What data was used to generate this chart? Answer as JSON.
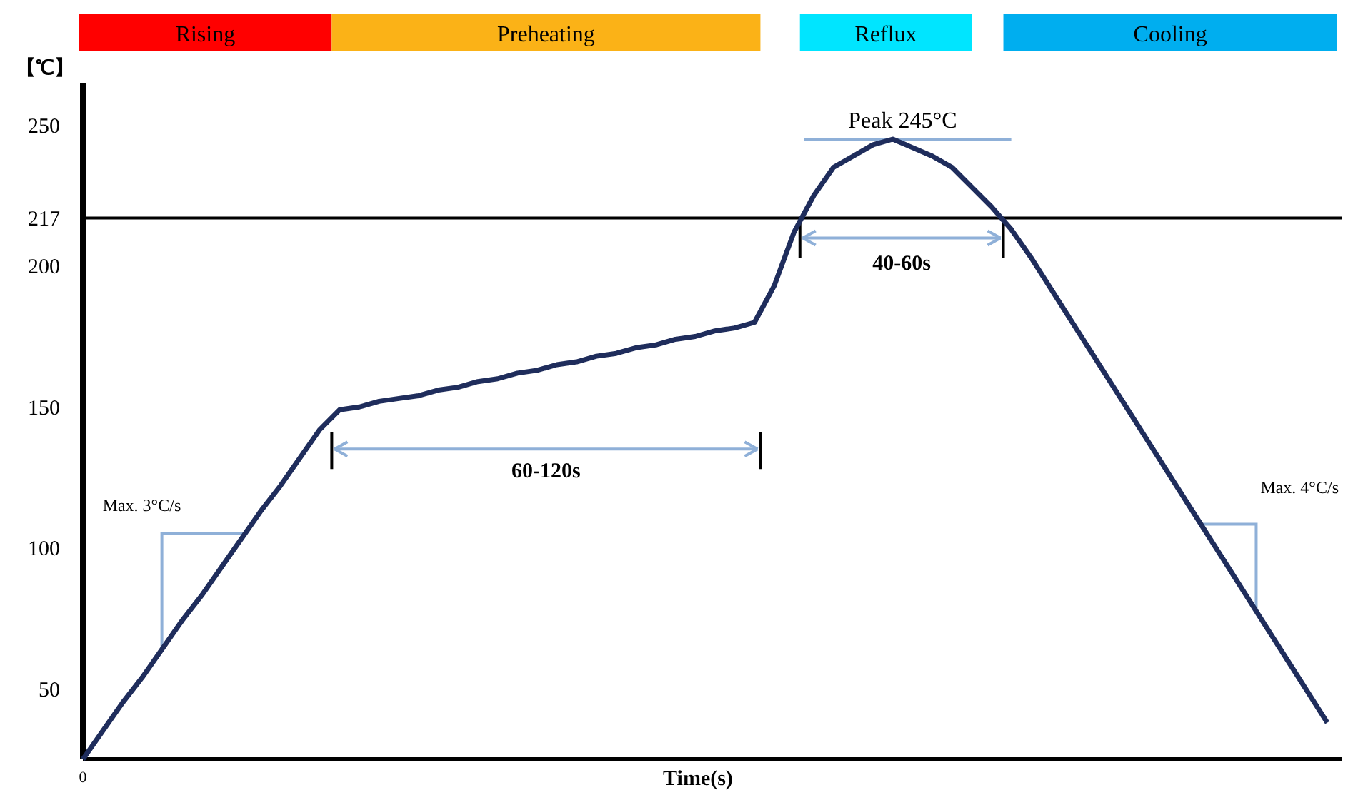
{
  "chart_data": {
    "type": "line",
    "xlabel": "Time(s)",
    "ylabel": "【℃】",
    "categories": [
      "0",
      null,
      null,
      null,
      null,
      null,
      null,
      null,
      null,
      null,
      null,
      null,
      null,
      null,
      null,
      null,
      null,
      null,
      null,
      null,
      null,
      null,
      null,
      null,
      null,
      null,
      null,
      null,
      null,
      null,
      null,
      null,
      null,
      null,
      null,
      null,
      null,
      null,
      null,
      null,
      null,
      null,
      null,
      null,
      null,
      null,
      null,
      null,
      null,
      null,
      null,
      null,
      null,
      null,
      null,
      null,
      null,
      null,
      null,
      null,
      null,
      null,
      null,
      null
    ],
    "series": [
      {
        "color": "#1f2d5c",
        "values": [
          25,
          35,
          45,
          54,
          64,
          74,
          83,
          93,
          103,
          113,
          122,
          132,
          142,
          149,
          150,
          152,
          153,
          154,
          156,
          157,
          159,
          160,
          162,
          163,
          165,
          166,
          168,
          169,
          171,
          172,
          174,
          175,
          177,
          178,
          180,
          193,
          212,
          225,
          235,
          239,
          243,
          245,
          242,
          239,
          235,
          228,
          221,
          213,
          203,
          192,
          181,
          170,
          159,
          148,
          137,
          126,
          115,
          104,
          93,
          82,
          71,
          60,
          49,
          38
        ]
      }
    ],
    "ylim": [
      25,
      265
    ],
    "yticks": [
      50,
      100,
      150,
      200,
      217,
      250
    ],
    "ref_lines": [
      {
        "axis": "y",
        "value": 217,
        "color": "#000000"
      }
    ],
    "annotations": [
      "Rising",
      "Preheating",
      "Reflux",
      "Cooling",
      "Peak 245°C",
      "40-60s",
      "60-120s",
      "Max. 3°C/s",
      "Max. 4°C/s"
    ],
    "grid": false,
    "line_style": "solid",
    "marker": "none"
  }
}
